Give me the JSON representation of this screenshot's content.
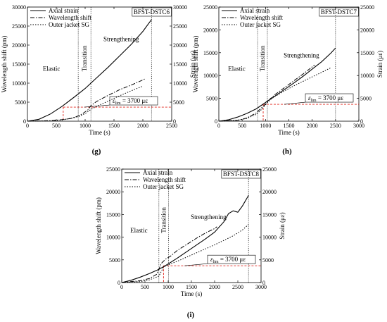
{
  "chart_data": [
    {
      "type": "line",
      "panel_label": "(g)",
      "box_label": "BFST-DSTC6",
      "xlabel": "Time (s)",
      "ylabel_left": "Wavelength shift (pm)",
      "ylabel_right": "Strain (με)",
      "xlim": [
        0,
        2500
      ],
      "ylim_left": [
        0,
        30000
      ],
      "ylim_right": [
        0,
        30000
      ],
      "xticks": [
        0,
        500,
        1000,
        1500,
        2000,
        2500
      ],
      "yticks_left": [
        0,
        5000,
        10000,
        15000,
        20000,
        25000,
        30000
      ],
      "yticks_right": [
        0,
        5000,
        10000,
        15000,
        20000,
        25000,
        30000
      ],
      "legend": [
        "Axial strain",
        "Wavelength shift",
        "Outer jacket SG"
      ],
      "regions": [
        {
          "label": "Elastic"
        },
        {
          "label": "Transition"
        },
        {
          "label": "Strengthening"
        }
      ],
      "markers_x": [
        880,
        1100,
        2150
      ],
      "eps_label": "ε",
      "eps_sub": "lim",
      "eps_value": " = 3700 με",
      "eps_level": 3700,
      "eps_x": 620,
      "series": [
        {
          "name": "Axial strain",
          "style": "solid",
          "axis": "right",
          "x": [
            0,
            200,
            400,
            600,
            800,
            1000,
            1200,
            1400,
            1600,
            1800,
            2000,
            2150
          ],
          "y": [
            0,
            500,
            1900,
            3900,
            6200,
            8600,
            11400,
            14200,
            17200,
            20200,
            23600,
            26700
          ]
        },
        {
          "name": "Wavelength shift",
          "style": "dashdot",
          "axis": "left",
          "x": [
            0,
            400,
            600,
            750,
            850,
            950,
            1050,
            1100,
            1200,
            1400,
            1600,
            1800,
            1950,
            2050
          ],
          "y": [
            0,
            150,
            400,
            700,
            1200,
            1900,
            3000,
            4100,
            5200,
            6800,
            8300,
            9500,
            10500,
            11200
          ]
        },
        {
          "name": "Outer jacket SG",
          "style": "dotted",
          "axis": "right",
          "x": [
            0,
            400,
            600,
            800,
            900,
            1000,
            1100,
            1200,
            1400,
            1600,
            1800,
            2000
          ],
          "y": [
            0,
            100,
            300,
            900,
            1300,
            2000,
            3100,
            3900,
            5300,
            6700,
            8000,
            9200
          ]
        }
      ]
    },
    {
      "type": "line",
      "panel_label": "(h)",
      "box_label": "BFST-DSTC7",
      "xlabel": "Time (s)",
      "ylabel_left": "Wavelength shift (pm)",
      "ylabel_right": "Strain (με)",
      "xlim": [
        0,
        3000
      ],
      "ylim_left": [
        0,
        25000
      ],
      "ylim_right": [
        0,
        25000
      ],
      "xticks": [
        0,
        500,
        1000,
        1500,
        2000,
        2500,
        3000
      ],
      "yticks_left": [
        0,
        5000,
        10000,
        15000,
        20000,
        25000
      ],
      "yticks_right": [
        0,
        5000,
        10000,
        15000,
        20000,
        25000
      ],
      "legend": [
        "Axial strain",
        "Wavelength shift",
        "Outer jacket SG"
      ],
      "regions": [
        {
          "label": "Elastic"
        },
        {
          "label": "Transition"
        },
        {
          "label": "Strengthening"
        }
      ],
      "markers_x": [
        830,
        1040,
        2500
      ],
      "eps_label": "ε",
      "eps_sub": "lim",
      "eps_value": " = 3700 με",
      "eps_level": 3700,
      "eps_x": 950,
      "series": [
        {
          "name": "Axial strain",
          "style": "solid",
          "axis": "right",
          "x": [
            0,
            200,
            400,
            600,
            800,
            900,
            1000,
            1200,
            1400,
            1600,
            1800,
            2000,
            2200,
            2400,
            2500
          ],
          "y": [
            0,
            300,
            900,
            1700,
            2700,
            3400,
            4100,
            5500,
            6900,
            8300,
            9800,
            11400,
            13000,
            14900,
            16000
          ]
        },
        {
          "name": "Wavelength shift",
          "style": "dashdot",
          "axis": "left",
          "x": [
            0,
            400,
            600,
            800,
            900,
            1000,
            1100,
            1200,
            1400,
            1600,
            1800,
            2000,
            2050
          ],
          "y": [
            0,
            200,
            700,
            1800,
            2800,
            3700,
            4900,
            5800,
            7300,
            8800,
            10300,
            11900,
            12300
          ]
        },
        {
          "name": "Outer jacket SG",
          "style": "dotted",
          "axis": "right",
          "x": [
            0,
            400,
            600,
            800,
            900,
            1000,
            1100,
            1200,
            1400,
            1600,
            1800,
            2000,
            2200,
            2400
          ],
          "y": [
            0,
            200,
            600,
            1500,
            2400,
            3600,
            4700,
            5400,
            6600,
            7700,
            8700,
            9700,
            10700,
            11700
          ]
        }
      ]
    },
    {
      "type": "line",
      "panel_label": "(i)",
      "box_label": "BFST-DSTC8",
      "xlabel": "Time (s)",
      "ylabel_left": "Wavelength shift (pm)",
      "ylabel_right": "Strain (με)",
      "xlim": [
        0,
        3000
      ],
      "ylim_left": [
        0,
        25000
      ],
      "ylim_right": [
        0,
        25000
      ],
      "xticks": [
        0,
        500,
        1000,
        1500,
        2000,
        2500,
        3000
      ],
      "yticks_left": [
        0,
        5000,
        10000,
        15000,
        20000,
        25000
      ],
      "yticks_right": [
        0,
        5000,
        10000,
        15000,
        20000,
        25000
      ],
      "legend": [
        "Axial strain",
        "Wavelength shift",
        "Outer jacket SG"
      ],
      "regions": [
        {
          "label": "Elastic"
        },
        {
          "label": "Transition"
        },
        {
          "label": "Strengthening"
        }
      ],
      "markers_x": [
        800,
        1010,
        2730
      ],
      "eps_label": "ε",
      "eps_sub": "lim",
      "eps_value": " = 3700 με",
      "eps_level": 3700,
      "eps_x": 900,
      "series": [
        {
          "name": "Axial strain",
          "style": "solid",
          "axis": "right",
          "x": [
            0,
            200,
            400,
            600,
            800,
            1000,
            1200,
            1400,
            1600,
            1800,
            2000,
            2200,
            2300,
            2400,
            2500,
            2600,
            2730
          ],
          "y": [
            0,
            500,
            1200,
            2000,
            2900,
            4100,
            5400,
            6800,
            8200,
            9600,
            11100,
            13400,
            15200,
            15800,
            15500,
            16900,
            19200
          ]
        },
        {
          "name": "Wavelength shift",
          "style": "dashdot",
          "axis": "left",
          "x": [
            0,
            400,
            600,
            750,
            800,
            850,
            950,
            1050,
            1200,
            1400,
            1600,
            1800,
            2000,
            2050
          ],
          "y": [
            0,
            400,
            900,
            1800,
            2900,
            4200,
            5200,
            5800,
            7100,
            8400,
            9700,
            10900,
            11900,
            12300
          ]
        },
        {
          "name": "Outer jacket SG",
          "style": "dotted",
          "axis": "right",
          "x": [
            0,
            400,
            600,
            800,
            850,
            900,
            1000,
            1200,
            1400,
            1600,
            1800,
            2000,
            2200,
            2400,
            2600,
            2730
          ],
          "y": [
            0,
            200,
            600,
            1400,
            2400,
            3400,
            3900,
            4700,
            5600,
            6500,
            7400,
            8300,
            9300,
            10300,
            11600,
            12800
          ]
        }
      ]
    }
  ]
}
